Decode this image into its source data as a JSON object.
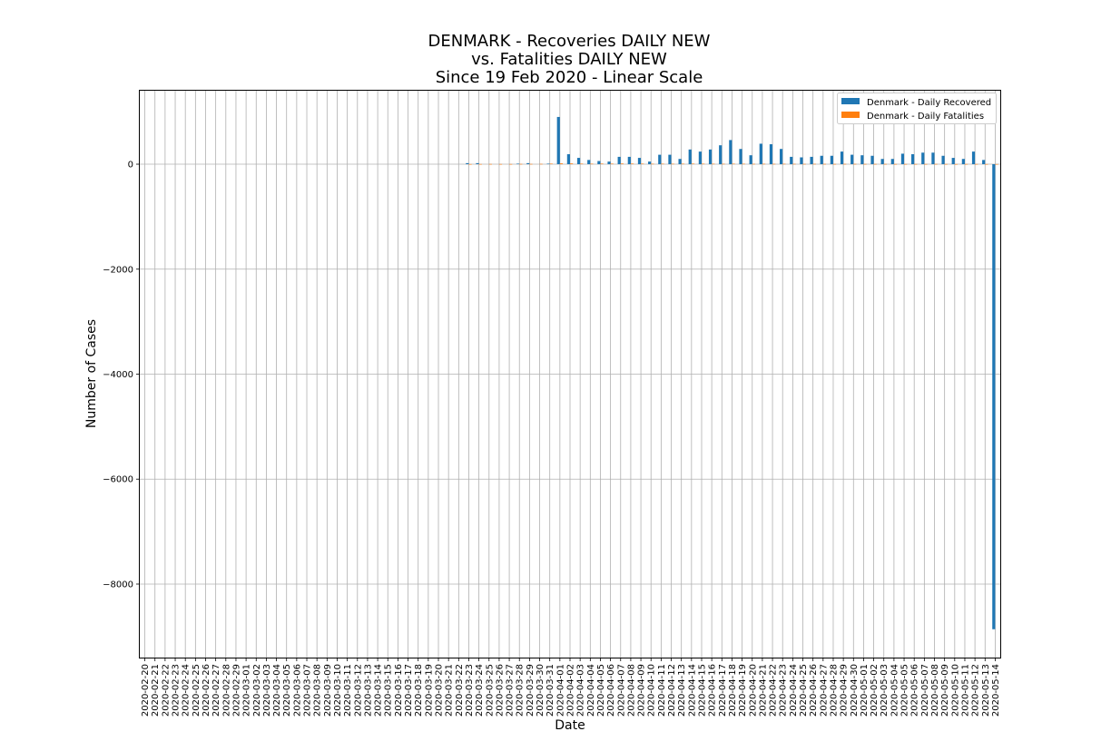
{
  "chart_data": {
    "type": "bar",
    "title_lines": [
      "DENMARK - Recoveries DAILY NEW",
      "vs. Fatalities DAILY NEW",
      "Since 19 Feb 2020 - Linear Scale"
    ],
    "xlabel": "Date",
    "ylabel": "Number of Cases",
    "ylim": [
      -9400,
      1400
    ],
    "yticks": [
      0,
      -2000,
      -4000,
      -6000,
      -8000
    ],
    "ytick_labels": [
      "0",
      "−2000",
      "−4000",
      "−6000",
      "−8000"
    ],
    "grid": true,
    "legend_position": "top-right",
    "categories": [
      "2020-02-20",
      "2020-02-21",
      "2020-02-22",
      "2020-02-23",
      "2020-02-24",
      "2020-02-25",
      "2020-02-26",
      "2020-02-27",
      "2020-02-28",
      "2020-02-29",
      "2020-03-01",
      "2020-03-02",
      "2020-03-03",
      "2020-03-04",
      "2020-03-05",
      "2020-03-06",
      "2020-03-07",
      "2020-03-08",
      "2020-03-09",
      "2020-03-10",
      "2020-03-11",
      "2020-03-12",
      "2020-03-13",
      "2020-03-14",
      "2020-03-15",
      "2020-03-16",
      "2020-03-17",
      "2020-03-18",
      "2020-03-19",
      "2020-03-20",
      "2020-03-21",
      "2020-03-22",
      "2020-03-23",
      "2020-03-24",
      "2020-03-25",
      "2020-03-26",
      "2020-03-27",
      "2020-03-28",
      "2020-03-29",
      "2020-03-30",
      "2020-03-31",
      "2020-04-01",
      "2020-04-02",
      "2020-04-03",
      "2020-04-04",
      "2020-04-05",
      "2020-04-06",
      "2020-04-07",
      "2020-04-08",
      "2020-04-09",
      "2020-04-10",
      "2020-04-11",
      "2020-04-12",
      "2020-04-13",
      "2020-04-14",
      "2020-04-15",
      "2020-04-16",
      "2020-04-17",
      "2020-04-18",
      "2020-04-19",
      "2020-04-20",
      "2020-04-21",
      "2020-04-22",
      "2020-04-23",
      "2020-04-24",
      "2020-04-25",
      "2020-04-26",
      "2020-04-27",
      "2020-04-28",
      "2020-04-29",
      "2020-04-30",
      "2020-05-01",
      "2020-05-02",
      "2020-05-03",
      "2020-05-04",
      "2020-05-05",
      "2020-05-06",
      "2020-05-07",
      "2020-05-08",
      "2020-05-09",
      "2020-05-10",
      "2020-05-11",
      "2020-05-12",
      "2020-05-13",
      "2020-05-14"
    ],
    "series": [
      {
        "name": "Denmark - Daily Recovered",
        "color": "#1f77b4",
        "values": [
          0,
          0,
          0,
          0,
          0,
          0,
          0,
          0,
          0,
          0,
          0,
          0,
          0,
          0,
          0,
          0,
          0,
          0,
          0,
          0,
          0,
          0,
          0,
          0,
          0,
          0,
          0,
          0,
          0,
          0,
          0,
          0,
          20,
          20,
          0,
          0,
          0,
          10,
          20,
          0,
          10,
          900,
          190,
          120,
          80,
          60,
          50,
          140,
          140,
          120,
          50,
          180,
          180,
          100,
          280,
          240,
          280,
          360,
          460,
          290,
          170,
          390,
          380,
          290,
          140,
          130,
          140,
          160,
          160,
          240,
          180,
          170,
          160,
          100,
          100,
          200,
          190,
          220,
          220,
          160,
          120,
          100,
          240,
          80,
          -8860
        ]
      },
      {
        "name": "Denmark - Daily Fatalities",
        "color": "#ff7f0e",
        "values": [
          0,
          0,
          0,
          0,
          0,
          0,
          0,
          0,
          0,
          0,
          0,
          0,
          0,
          0,
          0,
          0,
          0,
          0,
          0,
          0,
          0,
          0,
          0,
          0,
          0,
          0,
          0,
          0,
          0,
          0,
          0,
          0,
          2,
          3,
          4,
          3,
          3,
          5,
          5,
          6,
          10,
          15,
          14,
          10,
          9,
          11,
          10,
          12,
          11,
          10,
          8,
          9,
          8,
          9,
          10,
          9,
          8,
          7,
          9,
          8,
          6,
          7,
          6,
          7,
          6,
          5,
          6,
          5,
          4,
          5,
          5,
          4,
          4,
          4,
          3,
          3,
          3,
          3,
          4,
          3,
          2,
          3,
          3,
          2,
          2
        ]
      }
    ]
  }
}
